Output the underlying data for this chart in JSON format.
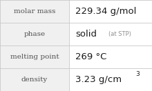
{
  "rows": [
    {
      "label": "molar mass",
      "value": "229.34 g/mol",
      "value_suffix": null,
      "superscript": null
    },
    {
      "label": "phase",
      "value": "solid",
      "value_suffix": "(at STP)",
      "superscript": null
    },
    {
      "label": "melting point",
      "value": "269 °C",
      "value_suffix": null,
      "superscript": null
    },
    {
      "label": "density",
      "value": "3.23 g/cm",
      "value_suffix": null,
      "superscript": "3"
    }
  ],
  "bg_color": "#ffffff",
  "left_bg_color": "#f0f0f0",
  "border_color": "#c8c8c8",
  "label_color": "#505050",
  "value_color": "#1a1a1a",
  "suffix_color": "#909090",
  "label_fontsize": 7.5,
  "value_fontsize": 9.5,
  "suffix_fontsize": 6.0,
  "super_fontsize": 6.5,
  "col_split": 0.455
}
